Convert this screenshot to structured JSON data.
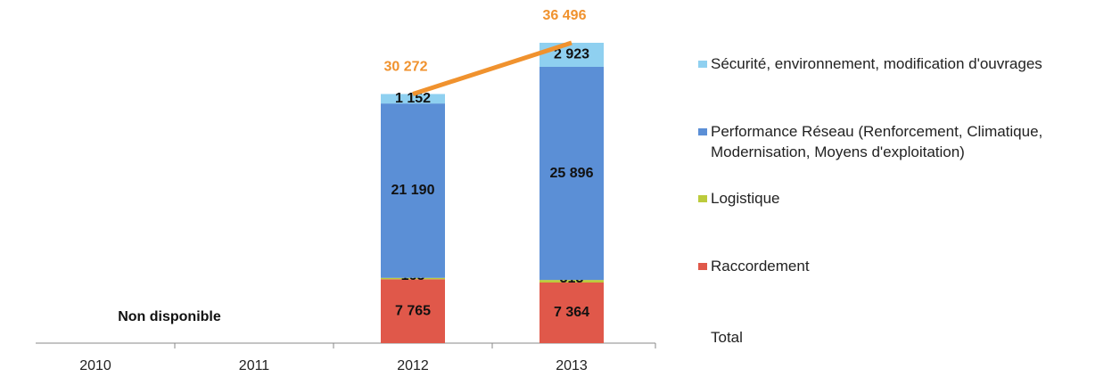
{
  "chart_data": {
    "type": "bar",
    "categories": [
      "2010",
      "2011",
      "2012",
      "2013"
    ],
    "annotation": "Non disponible",
    "series": [
      {
        "name": "Raccordement",
        "color": "#e0584a",
        "values": [
          null,
          null,
          7765,
          7364
        ],
        "value_labels": [
          null,
          null,
          "7 765",
          "7 364"
        ]
      },
      {
        "name": "Logistique",
        "color": "#bccb3c",
        "values": [
          null,
          null,
          165,
          313
        ],
        "value_labels": [
          null,
          null,
          "165",
          "313"
        ]
      },
      {
        "name": "Performance Réseau (Renforcement, Climatique, Modernisation, Moyens d'exploitation)",
        "color": "#5b8fd6",
        "values": [
          null,
          null,
          21190,
          25896
        ],
        "value_labels": [
          null,
          null,
          "21 190",
          "25 896"
        ]
      },
      {
        "name": "Sécurité, environnement, modification d'ouvrages",
        "color": "#8fd0f0",
        "values": [
          null,
          null,
          1152,
          2923
        ],
        "value_labels": [
          null,
          null,
          "1 152",
          "2 923"
        ]
      }
    ],
    "total": {
      "name": "Total",
      "color": "#f0922e",
      "values": [
        null,
        null,
        30272,
        36496
      ],
      "value_labels": [
        null,
        null,
        "30 272",
        "36 496"
      ]
    }
  }
}
